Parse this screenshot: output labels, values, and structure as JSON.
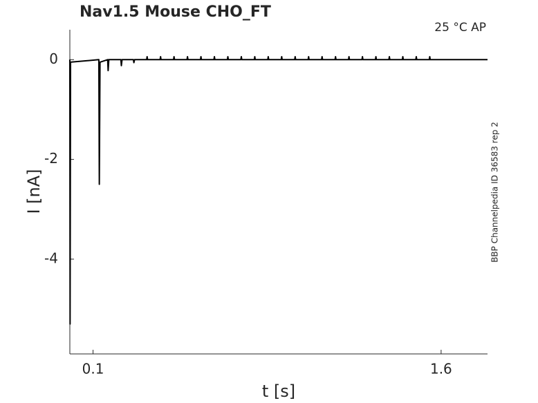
{
  "chart_data": {
    "type": "line",
    "title": "Nav1.5  Mouse  CHO_FT",
    "annotation": "25 °C  AP",
    "side_note": "BBP Channelpedia ID 36583 rep 2",
    "xlabel": "t [s]",
    "ylabel": "I [nA]",
    "xlim": [
      0,
      1.8
    ],
    "ylim": [
      -5.9,
      0.6
    ],
    "xticks": [
      0.1,
      1.6
    ],
    "yticks": [
      -4,
      -2,
      0
    ],
    "x": [
      0,
      0.001,
      0.003,
      0.125,
      0.127,
      0.13,
      0.163,
      0.165,
      0.168,
      0.22,
      0.222,
      0.225,
      0.274,
      0.276,
      0.279,
      0.331,
      0.333,
      0.335,
      0.389,
      0.391,
      0.393,
      0.447,
      0.449,
      0.451,
      0.505,
      0.507,
      0.509,
      0.563,
      0.565,
      0.567,
      0.621,
      0.623,
      0.625,
      0.679,
      0.681,
      0.683,
      0.737,
      0.739,
      0.741,
      0.795,
      0.797,
      0.799,
      0.853,
      0.855,
      0.857,
      0.911,
      0.913,
      0.915,
      0.969,
      0.971,
      0.973,
      1.027,
      1.029,
      1.031,
      1.085,
      1.087,
      1.089,
      1.143,
      1.145,
      1.147,
      1.201,
      1.203,
      1.205,
      1.259,
      1.261,
      1.263,
      1.317,
      1.319,
      1.321,
      1.375,
      1.377,
      1.379,
      1.433,
      1.435,
      1.437,
      1.491,
      1.493,
      1.495,
      1.549,
      1.551,
      1.553,
      1.65,
      1.8
    ],
    "series": [
      {
        "color": "#000000",
        "values": [
          0,
          -5.3,
          -0.05,
          0,
          -2.5,
          -0.05,
          0,
          -0.22,
          0,
          0,
          -0.12,
          0,
          0,
          -0.06,
          0,
          0,
          0.06,
          0,
          0,
          0.06,
          0,
          0,
          0.06,
          0,
          0,
          0.06,
          0,
          0,
          0.06,
          0,
          0,
          0.06,
          0,
          0,
          0.06,
          0,
          0,
          0.06,
          0,
          0,
          0.06,
          0,
          0,
          0.06,
          0,
          0,
          0.06,
          0,
          0,
          0.06,
          0,
          0,
          0.06,
          0,
          0,
          0.06,
          0,
          0,
          0.06,
          0,
          0,
          0.06,
          0,
          0,
          0.06,
          0,
          0,
          0.06,
          0,
          0,
          0.06,
          0,
          0,
          0.06,
          0,
          0,
          0.06,
          0,
          0,
          0.06,
          0,
          0,
          0
        ]
      }
    ]
  }
}
